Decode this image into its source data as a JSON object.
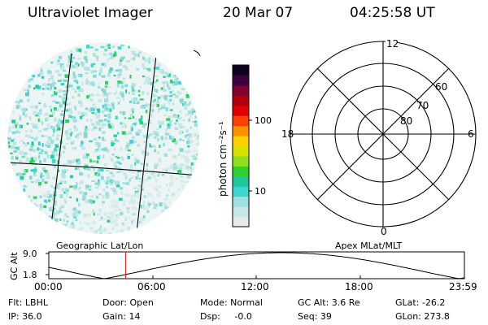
{
  "header": {
    "instrument": "Ultraviolet Imager",
    "date": "20 Mar 07",
    "time": "04:25:58 UT"
  },
  "colorbar": {
    "unit_label": "photon cm⁻²s⁻¹",
    "ticks": [
      "100",
      "10"
    ],
    "colors": [
      "#e8e8e8",
      "#c9e7e9",
      "#9fe0e3",
      "#40d6d0",
      "#20c8a0",
      "#30d030",
      "#90e020",
      "#d8e000",
      "#ffd000",
      "#ff9000",
      "#ff4000",
      "#e00000",
      "#b00010",
      "#800030",
      "#400040",
      "#100020"
    ]
  },
  "polar": {
    "lat_labels": [
      "80",
      "70",
      "60"
    ],
    "mlt_labels": {
      "top": "12",
      "left": "18",
      "right": "6",
      "bottom": "0"
    }
  },
  "map_labels": {
    "left": "Geographic Lat/Lon",
    "right": "Apex  MLat/MLT"
  },
  "alt_plot": {
    "ylabel": "GC Alt",
    "yticks": [
      "9.0",
      "1.8"
    ],
    "xticks": [
      "00:00",
      "06:00",
      "12:00",
      "18:00",
      "23:59"
    ],
    "marker_time": "04:25:58",
    "marker_color": "#ff0000"
  },
  "info": {
    "filter": "Flt: LBHL",
    "ip": "IP: 36.0",
    "door": "Door: Open",
    "gain": "Gain: 14",
    "mode": "Mode: Normal",
    "dsp": "Dsp:     -0.0",
    "gc_alt": "GC Alt: 3.6 Re",
    "seq": "Seq: 39",
    "glat": "GLat: -26.2",
    "glon": "GLon: 273.8"
  }
}
